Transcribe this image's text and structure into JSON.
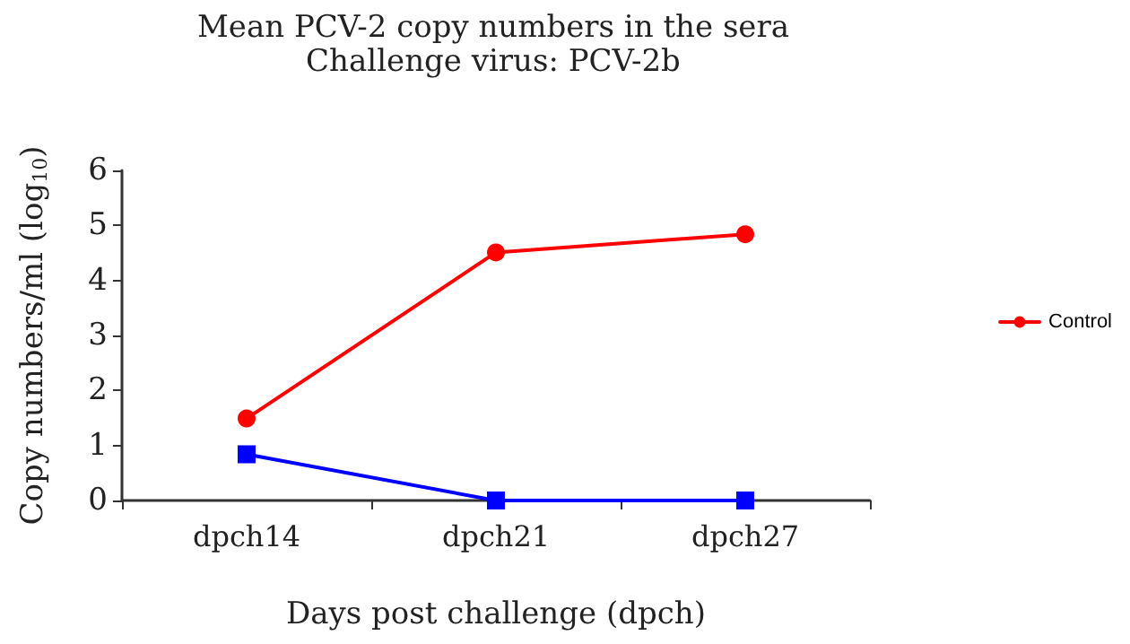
{
  "chart_data": {
    "type": "line",
    "title": "Mean PCV-2 copy numbers in the sera",
    "subtitle": "Challenge virus: PCV-2b",
    "xlabel": "Days post challenge (dpch)",
    "ylabel": "Copy numbers/ml (log$_{10}$)",
    "categories": [
      "dpch14",
      "dpch21",
      "dpch27"
    ],
    "series": [
      {
        "color": "#0000ff",
        "marker": "square",
        "values": [
          0.84,
          0,
          0
        ]
      },
      {
        "name": "Control",
        "color": "#ff0000",
        "marker": "circle",
        "values": [
          1.49,
          4.51,
          4.84
        ]
      }
    ],
    "ylim": [
      0,
      6
    ],
    "yticks": [
      0,
      1,
      2,
      3,
      4,
      5,
      6
    ],
    "grid": false,
    "legend": "right"
  }
}
